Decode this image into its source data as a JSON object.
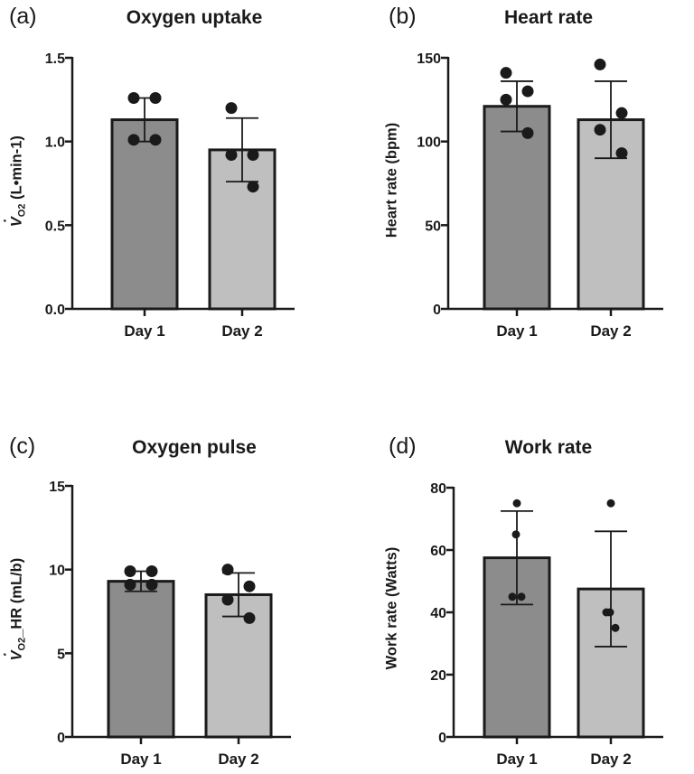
{
  "colors": {
    "day1": "#8c8c8c",
    "day2": "#bfbfbf",
    "outline": "#1a1a1a",
    "dot": "#1a1a1a"
  },
  "chart_data": [
    {
      "type": "bar",
      "panel_label": "(a)",
      "title": "Oxygen uptake",
      "ylabel_v": "V",
      "ylabel_sub": "O2",
      "ylabel_tail": " (L•min-1)",
      "categories": [
        "Day 1",
        "Day 2"
      ],
      "values": [
        1.13,
        0.95
      ],
      "sd": [
        0.13,
        0.19
      ],
      "points": [
        [
          1.26,
          1.26,
          1.01,
          1.01
        ],
        [
          1.2,
          0.92,
          0.92,
          0.73
        ]
      ],
      "ylim": [
        0,
        1.5
      ],
      "yticks": [
        0.0,
        0.5,
        1.0,
        1.5
      ],
      "ytick_labels": [
        "0.0",
        "0.5",
        "1.0",
        "1.5"
      ]
    },
    {
      "type": "bar",
      "panel_label": "(b)",
      "title": "Heart rate",
      "ylabel": "Heart rate (bpm)",
      "categories": [
        "Day 1",
        "Day 2"
      ],
      "values": [
        121,
        113
      ],
      "sd": [
        15,
        23
      ],
      "points": [
        [
          141,
          130,
          125,
          105
        ],
        [
          146,
          117,
          107,
          93
        ]
      ],
      "ylim": [
        0,
        150
      ],
      "yticks": [
        0,
        50,
        100,
        150
      ],
      "ytick_labels": [
        "0",
        "50",
        "100",
        "150"
      ]
    },
    {
      "type": "bar",
      "panel_label": "(c)",
      "title": "Oxygen pulse",
      "ylabel_v": "V",
      "ylabel_sub": "O2",
      "ylabel_tail": "_HR (mL/b)",
      "categories": [
        "Day 1",
        "Day 2"
      ],
      "values": [
        9.3,
        8.5
      ],
      "sd": [
        0.6,
        1.3
      ],
      "points": [
        [
          9.9,
          9.9,
          9.1,
          9.1
        ],
        [
          10.0,
          9.0,
          8.2,
          7.1
        ]
      ],
      "ylim": [
        0,
        15
      ],
      "yticks": [
        0,
        5,
        10,
        15
      ],
      "ytick_labels": [
        "0",
        "5",
        "10",
        "15"
      ]
    },
    {
      "type": "bar",
      "panel_label": "(d)",
      "title": "Work rate",
      "ylabel": "Work rate (Watts)",
      "categories": [
        "Day 1",
        "Day 2"
      ],
      "values": [
        57.5,
        47.5
      ],
      "sd": [
        15,
        18.5
      ],
      "points": [
        [
          75,
          65,
          45,
          45
        ],
        [
          75,
          40,
          40,
          35
        ]
      ],
      "ylim": [
        0,
        80
      ],
      "yticks": [
        0,
        20,
        40,
        60,
        80
      ],
      "ytick_labels": [
        "0",
        "20",
        "40",
        "60",
        "80"
      ]
    }
  ]
}
